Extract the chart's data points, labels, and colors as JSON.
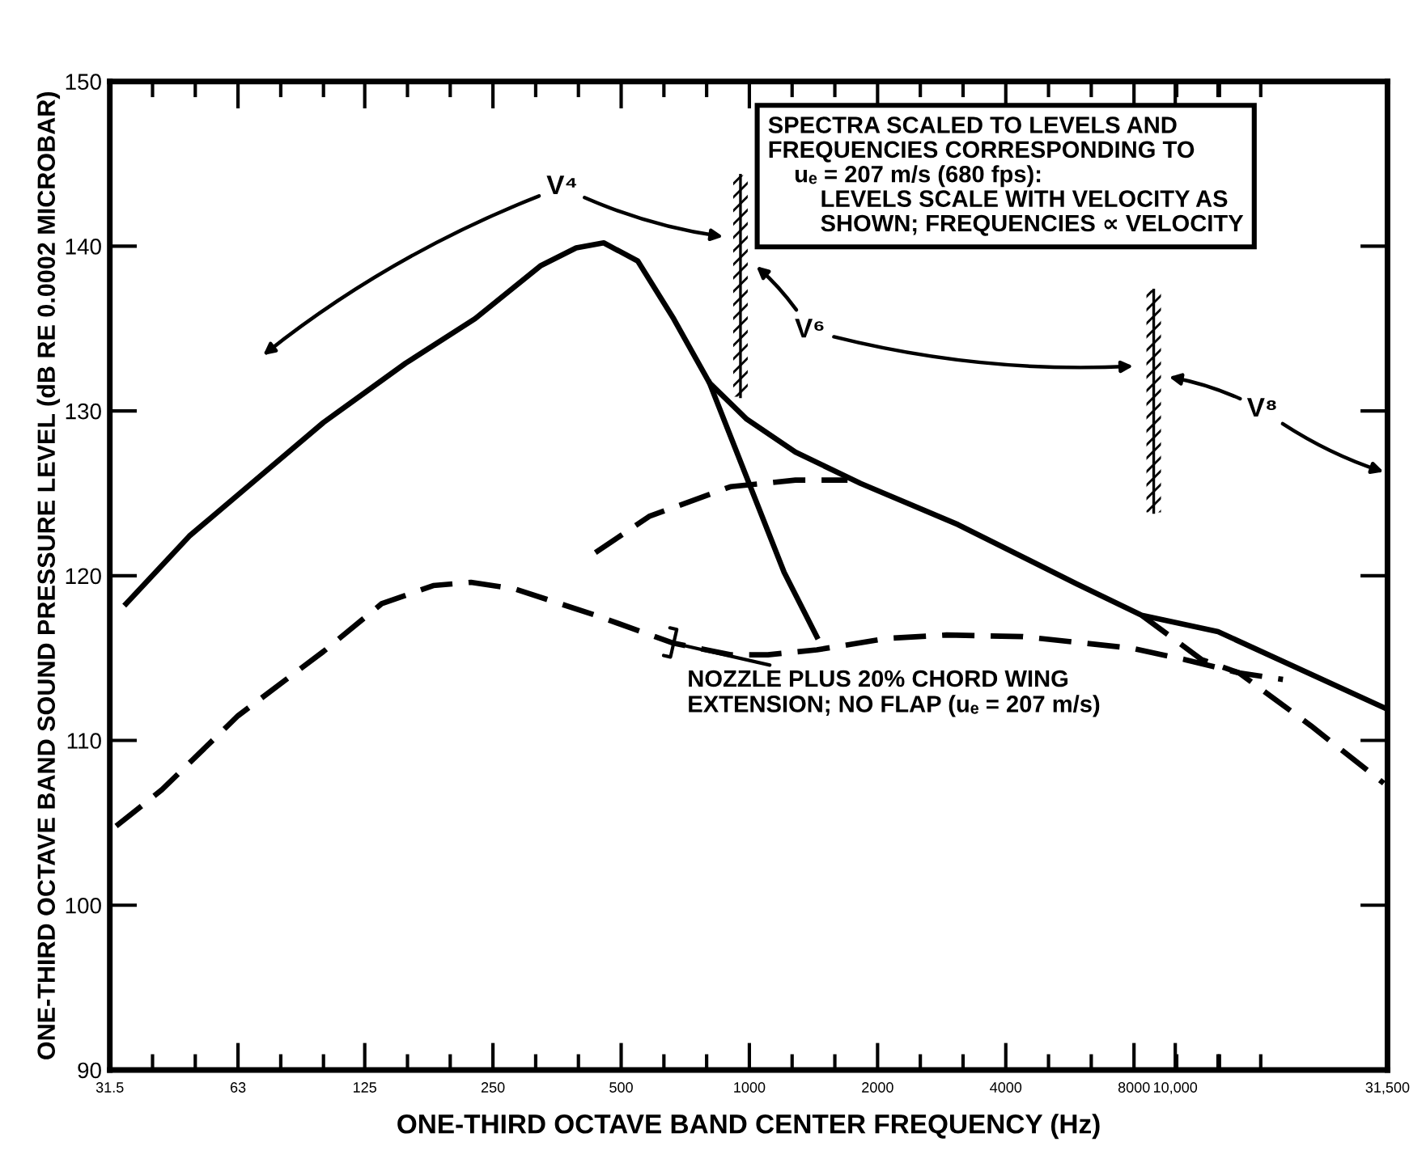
{
  "chart_data": {
    "type": "line",
    "xlabel": "ONE-THIRD OCTAVE BAND CENTER FREQUENCY (Hz)",
    "ylabel": "ONE-THIRD OCTAVE BAND SOUND PRESSURE LEVEL (dB RE 0.0002 MICROBAR)",
    "log": "x",
    "xlim": [
      31.5,
      31500
    ],
    "ylim": [
      90,
      150
    ],
    "xticks": [
      31.5,
      63,
      125,
      250,
      500,
      1000,
      2000,
      4000,
      8000,
      {
        "value": 10000,
        "label": "10,000"
      },
      {
        "value": 31500,
        "label": "31,500"
      }
    ],
    "yticks": [
      90,
      100,
      110,
      120,
      130,
      140,
      150
    ],
    "grid": false,
    "legend": false,
    "marker": "none",
    "series": [
      {
        "color": "#000000",
        "line_style": "solid",
        "x": [
          34.4,
          48.4,
          70.7,
          100,
          156,
          227,
          323,
          392,
          455,
          547,
          664,
          806,
          986,
          1283,
          1825,
          3090,
          5870,
          8340,
          12600,
          30870
        ],
        "values": [
          118.3,
          122.4,
          126.0,
          129.3,
          132.9,
          135.6,
          138.8,
          139.9,
          140.2,
          139.1,
          135.6,
          131.7,
          129.5,
          127.5,
          125.6,
          123.1,
          119.5,
          117.6,
          116.6,
          112.0
        ]
      },
      {
        "color": "#000000",
        "line_style": "solid",
        "x": [
          806,
          1207,
          1440
        ],
        "values": [
          131.7,
          120.2,
          116.3
        ]
      },
      {
        "color": "#000000",
        "line_style": "dashed",
        "x": [
          435,
          582,
          903,
          1283,
          1700
        ],
        "values": [
          121.4,
          123.6,
          125.4,
          125.8,
          125.8
        ]
      },
      {
        "color": "#000000",
        "line_style": "dashed",
        "x": [
          32.6,
          41.7,
          63,
          100,
          137,
          181,
          222,
          281,
          435,
          664,
          903,
          1105,
          1440,
          2117,
          2905,
          4390,
          7910,
          10560,
          14120,
          17900
        ],
        "values": [
          104.8,
          107.0,
          111.5,
          115.4,
          118.3,
          119.4,
          119.6,
          119.2,
          117.6,
          115.9,
          115.2,
          115.2,
          115.5,
          116.2,
          116.4,
          116.3,
          115.6,
          114.9,
          114.1,
          113.7
        ]
      },
      {
        "color": "#000000",
        "line_style": "dashed",
        "x": [
          8340,
          11540,
          14120,
          20800,
          30870
        ],
        "values": [
          117.6,
          114.9,
          114.1,
          110.9,
          107.4
        ]
      }
    ],
    "ref_lines": [
      {
        "axis": "x",
        "value": 953
      },
      {
        "axis": "x",
        "value": 8900
      }
    ],
    "annotations": [
      "V⁴",
      "V⁶",
      "V⁸",
      "SPECTRA SCALED TO LEVELS AND\nFREQUENCIES CORRESPONDING TO\n    uₑ = 207 m/s (680 fps):\n        LEVELS SCALE WITH VELOCITY AS\n        SHOWN; FREQUENCIES ∝ VELOCITY",
      {
        "text": "NOZZLE PLUS 20% CHORD WING\nEXTENSION; NO FLAP (uₑ = 207 m/s)",
        "x": 664,
        "y": 115.9
      }
    ]
  }
}
